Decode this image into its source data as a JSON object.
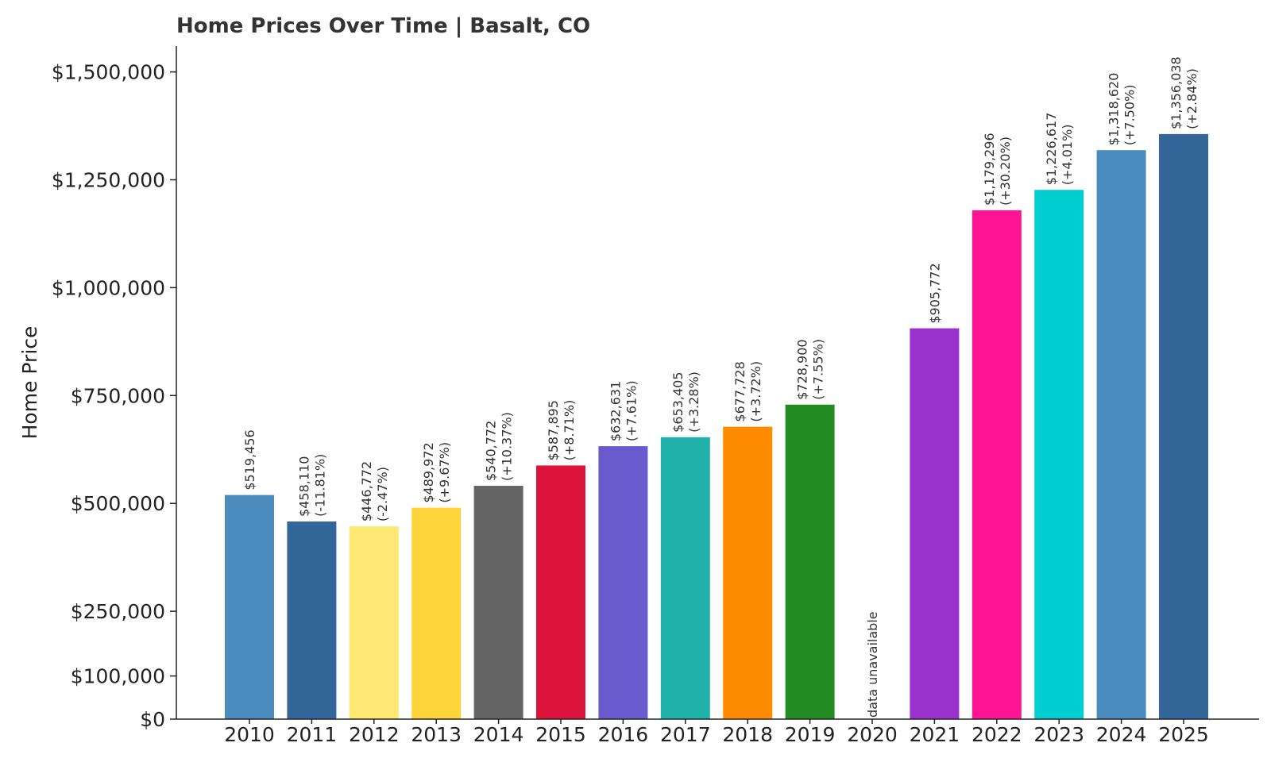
{
  "chart_data": {
    "type": "bar",
    "title": "Home Prices Over Time | Basalt, CO",
    "xlabel": "",
    "ylabel": "Home Price",
    "ylim": [
      0,
      1560000
    ],
    "yticks": [
      0,
      100000,
      250000,
      500000,
      750000,
      1000000,
      1250000,
      1500000
    ],
    "ytick_labels": [
      "$0",
      "$100,000",
      "$250,000",
      "$500,000",
      "$750,000",
      "$1,000,000",
      "$1,250,000",
      "$1,500,000"
    ],
    "grid": false,
    "categories": [
      "2010",
      "2011",
      "2012",
      "2013",
      "2014",
      "2015",
      "2016",
      "2017",
      "2018",
      "2019",
      "2020",
      "2021",
      "2022",
      "2023",
      "2024",
      "2025"
    ],
    "values": [
      519456,
      458110,
      446772,
      489972,
      540772,
      587895,
      632631,
      653405,
      677728,
      728900,
      null,
      905772,
      1179296,
      1226617,
      1318620,
      1356038
    ],
    "labels": [
      [
        "$519,456"
      ],
      [
        "$458,110",
        "(-11.81%)"
      ],
      [
        "$446,772",
        "(-2.47%)"
      ],
      [
        "$489,972",
        "(+9.67%)"
      ],
      [
        "$540,772",
        "(+10.37%)"
      ],
      [
        "$587,895",
        "(+8.71%)"
      ],
      [
        "$632,631",
        "(+7.61%)"
      ],
      [
        "$653,405",
        "(+3.28%)"
      ],
      [
        "$677,728",
        "(+3.72%)"
      ],
      [
        "$728,900",
        "(+7.55%)"
      ],
      [
        "data unavailable"
      ],
      [
        "$905,772"
      ],
      [
        "$1,179,296",
        "(+30.20%)"
      ],
      [
        "$1,226,617",
        "(+4.01%)"
      ],
      [
        "$1,318,620",
        "(+7.50%)"
      ],
      [
        "$1,356,038",
        "(+2.84%)"
      ]
    ],
    "colors": [
      "#4b8bbe",
      "#336699",
      "#ffe873",
      "#ffd43b",
      "#646464",
      "#dc143c",
      "#6a5acd",
      "#20b2aa",
      "#ff8c00",
      "#228b22",
      "#cccccc",
      "#9932cc",
      "#ff1493",
      "#00ced1",
      "#4b8bbe",
      "#336699"
    ]
  }
}
